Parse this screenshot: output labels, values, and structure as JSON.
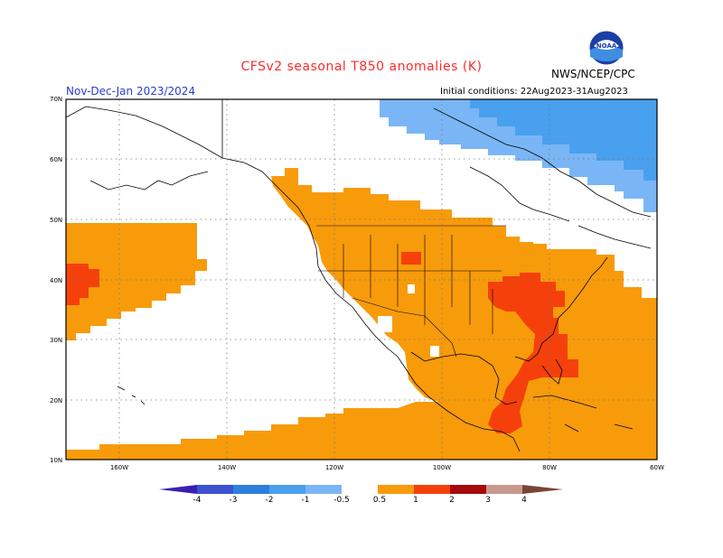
{
  "header": {
    "title": "CFSv2 seasonal T850 anomalies (K)",
    "period": "Nov-Dec-Jan 2023/2024",
    "initial_conditions": "Initial conditions: 22Aug2023-31Aug2023",
    "agency": "NWS/NCEP/CPC"
  },
  "logo": {
    "icon": "noaa-logo-icon",
    "text": "NOAA"
  },
  "map": {
    "lat_labels": [
      "70N",
      "60N",
      "50N",
      "40N",
      "30N",
      "20N",
      "10N"
    ],
    "lon_labels": [
      "160W",
      "140W",
      "120W",
      "100W",
      "80W",
      "60W"
    ],
    "lat_range": [
      10,
      70
    ],
    "lon_range": [
      -170,
      -60
    ],
    "gridlines": "dotted"
  },
  "colorbar": {
    "labels": [
      "-4",
      "-3",
      "-2",
      "-1",
      "-0.5",
      "0.5",
      "1",
      "2",
      "3",
      "4"
    ],
    "colors": [
      "#3b1fb5",
      "#3a52cf",
      "#2f7fdf",
      "#49a0ee",
      "#7ab6f5",
      "#ffffff",
      "#f79b0a",
      "#f5400c",
      "#a60a0a",
      "#c7998c",
      "#7a4536"
    ]
  }
}
